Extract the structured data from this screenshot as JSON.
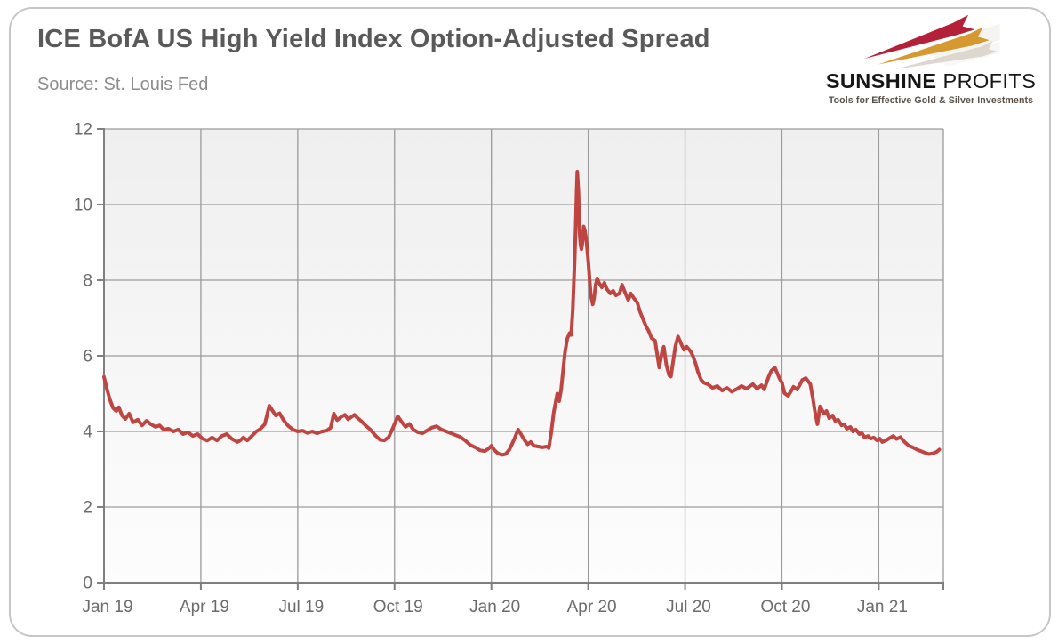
{
  "header": {
    "title": "ICE BofA US High Yield Index Option-Adjusted Spread",
    "source": "Source: St. Louis Fed",
    "title_color": "#595959",
    "source_color": "#8c8c8c"
  },
  "logo": {
    "brand_bold": "SUNSHINE",
    "brand_light": "PROFITS",
    "tagline": "Tools for Effective Gold & Silver Investments",
    "bolt_colors": {
      "red": "#b32038",
      "gold": "#d5992f",
      "gray": "#d9d4ca",
      "echo": "#e9e6e0"
    }
  },
  "card": {
    "border_color": "#c6c6c6",
    "background": "#ffffff"
  },
  "chart_data": {
    "type": "line",
    "title": "ICE BofA US High Yield Index Option-Adjusted Spread",
    "source": "Source: St. Louis Fed",
    "xlabel": "",
    "ylabel": "",
    "x_domain_months_from_jan2019": [
      0,
      26
    ],
    "x_tick_months": [
      0,
      3,
      6,
      9,
      12,
      15,
      18,
      21,
      24
    ],
    "x_tick_labels": [
      "Jan 19",
      "Apr 19",
      "Jul 19",
      "Oct 19",
      "Jan 20",
      "Apr 20",
      "Jul 20",
      "Oct 20",
      "Jan 21"
    ],
    "ylim": [
      0,
      12
    ],
    "y_ticks": [
      0,
      2,
      4,
      6,
      8,
      10,
      12
    ],
    "grid": true,
    "legend": "none",
    "peak_value": 10.87,
    "style": {
      "line_color": "#be4541",
      "line_width": 4,
      "grid_color": "#9b9b9b",
      "axis_color": "#7f7f7f",
      "tick_label_color": "#6b6b6b",
      "plot_bg_top": "#efefef",
      "plot_bg_bottom": "#fdfdfd"
    },
    "series": [
      {
        "name": "ICE BofA US High Yield Index Option-Adjusted Spread (%)",
        "points": [
          [
            0,
            5.44
          ],
          [
            0.08,
            5.15
          ],
          [
            0.18,
            4.85
          ],
          [
            0.28,
            4.62
          ],
          [
            0.38,
            4.54
          ],
          [
            0.46,
            4.64
          ],
          [
            0.56,
            4.42
          ],
          [
            0.66,
            4.33
          ],
          [
            0.78,
            4.47
          ],
          [
            0.9,
            4.24
          ],
          [
            1.05,
            4.31
          ],
          [
            1.18,
            4.16
          ],
          [
            1.32,
            4.28
          ],
          [
            1.45,
            4.19
          ],
          [
            1.6,
            4.12
          ],
          [
            1.72,
            4.16
          ],
          [
            1.85,
            4.05
          ],
          [
            2,
            4.07
          ],
          [
            2.15,
            4
          ],
          [
            2.3,
            4.05
          ],
          [
            2.45,
            3.93
          ],
          [
            2.6,
            3.98
          ],
          [
            2.75,
            3.88
          ],
          [
            2.9,
            3.93
          ],
          [
            3.05,
            3.81
          ],
          [
            3.2,
            3.76
          ],
          [
            3.35,
            3.84
          ],
          [
            3.5,
            3.76
          ],
          [
            3.65,
            3.88
          ],
          [
            3.8,
            3.93
          ],
          [
            3.95,
            3.81
          ],
          [
            4.13,
            3.72
          ],
          [
            4.22,
            3.76
          ],
          [
            4.32,
            3.84
          ],
          [
            4.44,
            3.76
          ],
          [
            4.58,
            3.88
          ],
          [
            4.72,
            4
          ],
          [
            4.85,
            4.07
          ],
          [
            4.98,
            4.19
          ],
          [
            5.12,
            4.68
          ],
          [
            5.22,
            4.55
          ],
          [
            5.32,
            4.42
          ],
          [
            5.44,
            4.48
          ],
          [
            5.56,
            4.3
          ],
          [
            5.7,
            4.15
          ],
          [
            5.85,
            4.05
          ],
          [
            6,
            4
          ],
          [
            6.15,
            4.02
          ],
          [
            6.3,
            3.96
          ],
          [
            6.45,
            4
          ],
          [
            6.6,
            3.95
          ],
          [
            6.75,
            4
          ],
          [
            6.9,
            4.02
          ],
          [
            7.02,
            4.1
          ],
          [
            7.12,
            4.47
          ],
          [
            7.22,
            4.3
          ],
          [
            7.34,
            4.38
          ],
          [
            7.46,
            4.44
          ],
          [
            7.56,
            4.32
          ],
          [
            7.66,
            4.38
          ],
          [
            7.76,
            4.44
          ],
          [
            7.86,
            4.35
          ],
          [
            7.96,
            4.28
          ],
          [
            8.1,
            4.16
          ],
          [
            8.25,
            4.05
          ],
          [
            8.4,
            3.9
          ],
          [
            8.55,
            3.78
          ],
          [
            8.68,
            3.76
          ],
          [
            8.82,
            3.85
          ],
          [
            8.95,
            4.1
          ],
          [
            9.1,
            4.4
          ],
          [
            9.22,
            4.25
          ],
          [
            9.34,
            4.12
          ],
          [
            9.46,
            4.2
          ],
          [
            9.58,
            4.05
          ],
          [
            9.72,
            3.98
          ],
          [
            9.86,
            3.95
          ],
          [
            10,
            4.02
          ],
          [
            10.15,
            4.1
          ],
          [
            10.3,
            4.14
          ],
          [
            10.45,
            4.05
          ],
          [
            10.6,
            4
          ],
          [
            10.75,
            3.95
          ],
          [
            10.9,
            3.9
          ],
          [
            11.05,
            3.85
          ],
          [
            11.2,
            3.75
          ],
          [
            11.35,
            3.64
          ],
          [
            11.5,
            3.58
          ],
          [
            11.65,
            3.5
          ],
          [
            11.8,
            3.48
          ],
          [
            11.92,
            3.55
          ],
          [
            12,
            3.62
          ],
          [
            12.1,
            3.5
          ],
          [
            12.2,
            3.42
          ],
          [
            12.32,
            3.38
          ],
          [
            12.44,
            3.4
          ],
          [
            12.56,
            3.52
          ],
          [
            12.7,
            3.78
          ],
          [
            12.83,
            4.05
          ],
          [
            12.92,
            3.92
          ],
          [
            13.02,
            3.78
          ],
          [
            13.12,
            3.66
          ],
          [
            13.22,
            3.72
          ],
          [
            13.32,
            3.62
          ],
          [
            13.45,
            3.6
          ],
          [
            13.58,
            3.58
          ],
          [
            13.71,
            3.6
          ],
          [
            13.78,
            3.56
          ],
          [
            13.85,
            3.95
          ],
          [
            13.93,
            4.5
          ],
          [
            14.04,
            5
          ],
          [
            14.1,
            4.8
          ],
          [
            14.16,
            5.1
          ],
          [
            14.22,
            5.6
          ],
          [
            14.28,
            6.1
          ],
          [
            14.35,
            6.45
          ],
          [
            14.42,
            6.6
          ],
          [
            14.47,
            6.55
          ],
          [
            14.52,
            7.2
          ],
          [
            14.57,
            8.3
          ],
          [
            14.61,
            9.4
          ],
          [
            14.64,
            10.3
          ],
          [
            14.66,
            10.87
          ],
          [
            14.7,
            10.3
          ],
          [
            14.73,
            9.29
          ],
          [
            14.76,
            8.94
          ],
          [
            14.79,
            8.82
          ],
          [
            14.82,
            8.99
          ],
          [
            14.86,
            9.42
          ],
          [
            14.9,
            9.29
          ],
          [
            14.95,
            8.99
          ],
          [
            15,
            8.52
          ],
          [
            15.04,
            8.05
          ],
          [
            15.08,
            7.6
          ],
          [
            15.14,
            7.36
          ],
          [
            15.18,
            7.53
          ],
          [
            15.23,
            7.88
          ],
          [
            15.28,
            8.05
          ],
          [
            15.32,
            7.95
          ],
          [
            15.42,
            7.81
          ],
          [
            15.5,
            7.93
          ],
          [
            15.58,
            7.76
          ],
          [
            15.69,
            7.65
          ],
          [
            15.77,
            7.72
          ],
          [
            15.86,
            7.6
          ],
          [
            15.97,
            7.65
          ],
          [
            16.05,
            7.88
          ],
          [
            16.13,
            7.7
          ],
          [
            16.24,
            7.48
          ],
          [
            16.32,
            7.65
          ],
          [
            16.41,
            7.53
          ],
          [
            16.52,
            7.41
          ],
          [
            16.6,
            7.18
          ],
          [
            16.68,
            7.01
          ],
          [
            16.79,
            6.78
          ],
          [
            16.87,
            6.66
          ],
          [
            16.96,
            6.47
          ],
          [
            17.07,
            6.4
          ],
          [
            17.2,
            5.69
          ],
          [
            17.29,
            6.12
          ],
          [
            17.34,
            6.24
          ],
          [
            17.42,
            5.76
          ],
          [
            17.51,
            5.48
          ],
          [
            17.56,
            5.45
          ],
          [
            17.7,
            6.24
          ],
          [
            17.78,
            6.51
          ],
          [
            17.9,
            6.28
          ],
          [
            17.97,
            6.16
          ],
          [
            18.05,
            6.24
          ],
          [
            18.17,
            6.12
          ],
          [
            18.24,
            6
          ],
          [
            18.32,
            5.81
          ],
          [
            18.4,
            5.57
          ],
          [
            18.5,
            5.36
          ],
          [
            18.58,
            5.29
          ],
          [
            18.7,
            5.25
          ],
          [
            18.85,
            5.15
          ],
          [
            19,
            5.2
          ],
          [
            19.15,
            5.08
          ],
          [
            19.3,
            5.15
          ],
          [
            19.45,
            5.05
          ],
          [
            19.6,
            5.12
          ],
          [
            19.75,
            5.2
          ],
          [
            19.9,
            5.13
          ],
          [
            20.1,
            5.25
          ],
          [
            20.23,
            5.13
          ],
          [
            20.37,
            5.22
          ],
          [
            20.45,
            5.11
          ],
          [
            20.59,
            5.45
          ],
          [
            20.67,
            5.6
          ],
          [
            20.78,
            5.69
          ],
          [
            20.86,
            5.53
          ],
          [
            20.92,
            5.41
          ],
          [
            21,
            5.29
          ],
          [
            21.08,
            5.01
          ],
          [
            21.19,
            4.94
          ],
          [
            21.28,
            5.06
          ],
          [
            21.36,
            5.18
          ],
          [
            21.47,
            5.11
          ],
          [
            21.55,
            5.22
          ],
          [
            21.63,
            5.36
          ],
          [
            21.74,
            5.41
          ],
          [
            21.88,
            5.25
          ],
          [
            21.96,
            4.87
          ],
          [
            22.02,
            4.54
          ],
          [
            22.1,
            4.19
          ],
          [
            22.18,
            4.66
          ],
          [
            22.3,
            4.47
          ],
          [
            22.38,
            4.54
          ],
          [
            22.46,
            4.35
          ],
          [
            22.57,
            4.42
          ],
          [
            22.65,
            4.28
          ],
          [
            22.74,
            4.31
          ],
          [
            22.85,
            4.16
          ],
          [
            22.93,
            4.19
          ],
          [
            23.01,
            4.07
          ],
          [
            23.12,
            4.12
          ],
          [
            23.2,
            4
          ],
          [
            23.29,
            4.05
          ],
          [
            23.4,
            3.93
          ],
          [
            23.48,
            3.95
          ],
          [
            23.56,
            3.84
          ],
          [
            23.67,
            3.88
          ],
          [
            23.75,
            3.81
          ],
          [
            23.84,
            3.84
          ],
          [
            23.95,
            3.76
          ],
          [
            24.03,
            3.81
          ],
          [
            24.11,
            3.72
          ],
          [
            24.22,
            3.76
          ],
          [
            24.33,
            3.82
          ],
          [
            24.45,
            3.88
          ],
          [
            24.55,
            3.8
          ],
          [
            24.67,
            3.85
          ],
          [
            24.8,
            3.72
          ],
          [
            24.93,
            3.62
          ],
          [
            25.05,
            3.58
          ],
          [
            25.18,
            3.52
          ],
          [
            25.3,
            3.48
          ],
          [
            25.42,
            3.44
          ],
          [
            25.55,
            3.4
          ],
          [
            25.68,
            3.42
          ],
          [
            25.8,
            3.46
          ],
          [
            25.88,
            3.52
          ]
        ]
      }
    ]
  }
}
